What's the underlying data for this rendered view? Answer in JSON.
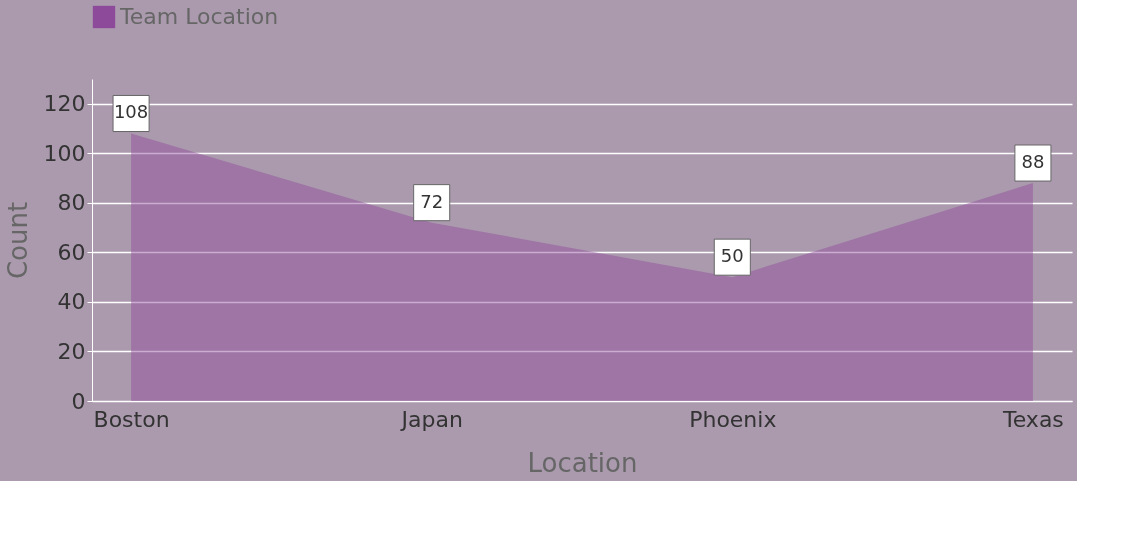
{
  "chart_data": {
    "type": "area",
    "xlabel": "Location",
    "ylabel": "Count",
    "categories": [
      "Boston",
      "Japan",
      "Phoenix",
      "Texas"
    ],
    "series": [
      {
        "name": "Team Location",
        "color": "#8e4a9a",
        "values": [
          108,
          72,
          50,
          88
        ]
      }
    ],
    "ylim": [
      0,
      130
    ],
    "yticks": [
      0,
      20,
      40,
      60,
      80,
      100,
      120
    ],
    "grid": "y",
    "legend": "top",
    "data_labels": true
  }
}
